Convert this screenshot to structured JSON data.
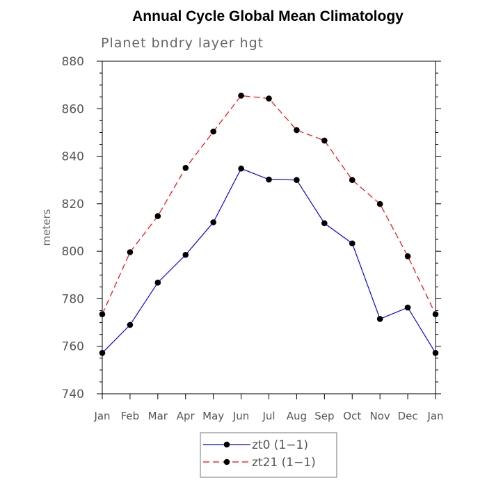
{
  "chart_data": {
    "type": "line",
    "title": "Annual Cycle Global Mean Climatology",
    "subtitle": "Planet bndry layer hgt",
    "xlabel": "",
    "ylabel": "meters",
    "ylim": [
      740,
      880
    ],
    "yticks": [
      740,
      760,
      780,
      800,
      820,
      840,
      860,
      880
    ],
    "ytick_labels": [
      "740",
      "760",
      "780",
      "800",
      "820",
      "840",
      "860",
      "880"
    ],
    "categories": [
      "Jan",
      "Feb",
      "Mar",
      "Apr",
      "May",
      "Jun",
      "Jul",
      "Aug",
      "Sep",
      "Oct",
      "Nov",
      "Dec",
      "Jan"
    ],
    "grid": false,
    "legend_position": "bottom-center",
    "series": [
      {
        "name": "zt0 (1−1)",
        "color": "#0000ff",
        "dash": "solid",
        "values": [
          757.2,
          769.0,
          786.8,
          798.5,
          812.2,
          834.8,
          830.2,
          830.0,
          811.8,
          803.3,
          771.5,
          776.3,
          757.2
        ]
      },
      {
        "name": "zt21 (1−1)",
        "color": "#ff0000",
        "dash": "dashed",
        "values": [
          773.5,
          799.6,
          814.8,
          835.1,
          850.4,
          865.5,
          864.3,
          851.0,
          846.6,
          830.0,
          819.9,
          797.9,
          773.5
        ]
      }
    ]
  }
}
